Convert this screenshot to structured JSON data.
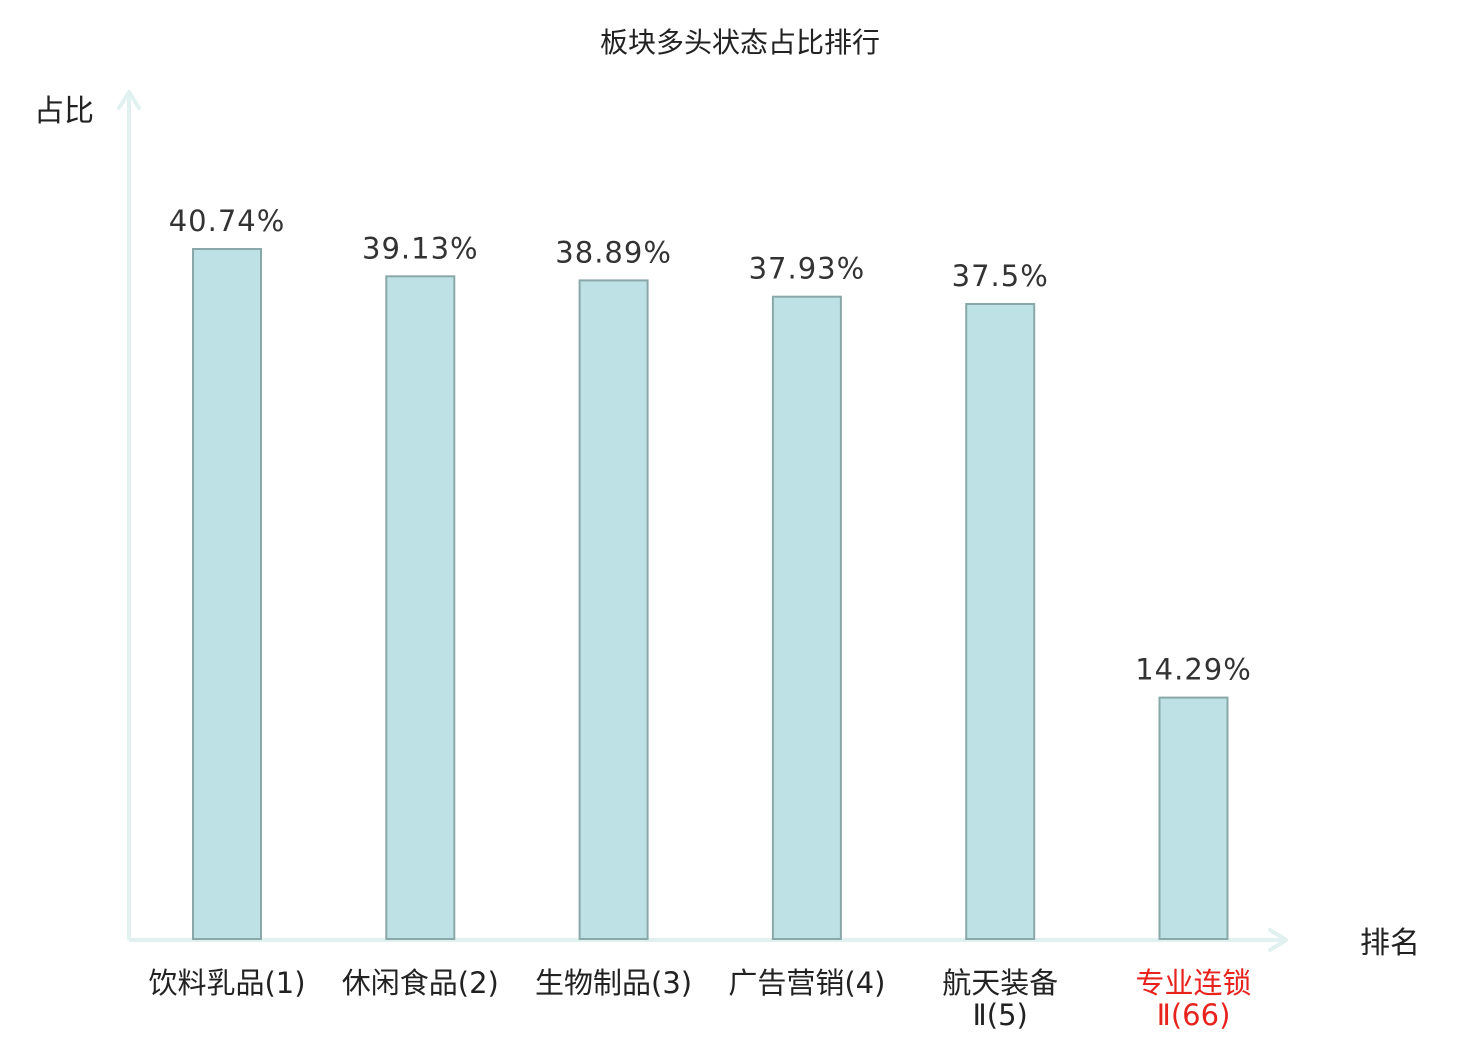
{
  "chart_data": {
    "type": "bar",
    "title": "板块多头状态占比排行",
    "ylabel": "占比",
    "xlabel": "排名",
    "categories": [
      "饮料乳品(1)",
      "休闲食品(2)",
      "生物制品(3)",
      "广告营销(4)",
      "航天装备Ⅱ(5)",
      "专业连锁Ⅱ(66)"
    ],
    "category_lines": [
      [
        "饮料乳品(1)"
      ],
      [
        "休闲食品(2)"
      ],
      [
        "生物制品(3)"
      ],
      [
        "广告营销(4)"
      ],
      [
        "航天装备",
        "Ⅱ(5)"
      ],
      [
        "专业连锁",
        "Ⅱ(66)"
      ]
    ],
    "values": [
      40.74,
      39.13,
      38.89,
      37.93,
      37.5,
      14.29
    ],
    "value_labels": [
      "40.74%",
      "39.13%",
      "38.89%",
      "37.93%",
      "37.5%",
      "14.29%"
    ],
    "highlight_index": 5,
    "ylim": [
      0,
      45
    ],
    "grid": false,
    "legend": "none",
    "colors": {
      "bar_fill": "#bde1e4",
      "bar_stroke": "#8aa8aa",
      "axis": "#e0f1ef",
      "text": "#222222",
      "value_text": "#333333",
      "highlight": "#e8231d"
    }
  }
}
